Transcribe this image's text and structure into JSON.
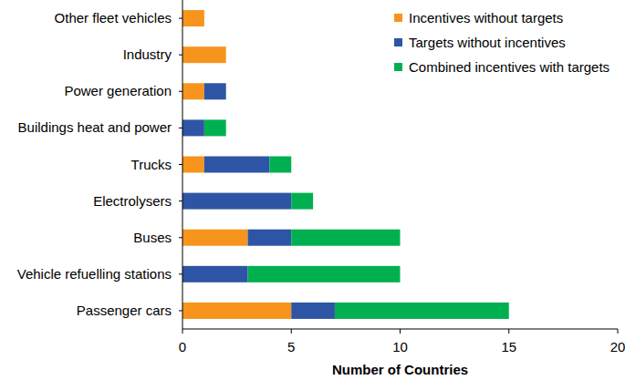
{
  "chart_data": {
    "type": "bar",
    "orientation": "horizontal",
    "stacked": true,
    "x_label": "Number of Countries",
    "categories": [
      "Passenger cars",
      "Vehicle refuelling stations",
      "Buses",
      "Electrolysers",
      "Trucks",
      "Buildings heat and power",
      "Power generation",
      "Industry",
      "Other fleet vehicles"
    ],
    "series": [
      {
        "name": "Incentives without targets",
        "color": "#f7941d",
        "values": [
          5,
          0,
          3,
          0,
          1,
          0,
          1,
          2,
          1
        ]
      },
      {
        "name": "Targets without incentives",
        "color": "#2e55a5",
        "values": [
          2,
          3,
          2,
          5,
          3,
          1,
          1,
          0,
          0
        ]
      },
      {
        "name": "Combined incentives with targets",
        "color": "#00b050",
        "values": [
          8,
          7,
          5,
          1,
          1,
          1,
          0,
          0,
          0
        ]
      }
    ],
    "xlim": [
      0,
      20
    ],
    "xticks": [
      0,
      5,
      10,
      15,
      20
    ],
    "grid": false,
    "legend": "upper right"
  }
}
